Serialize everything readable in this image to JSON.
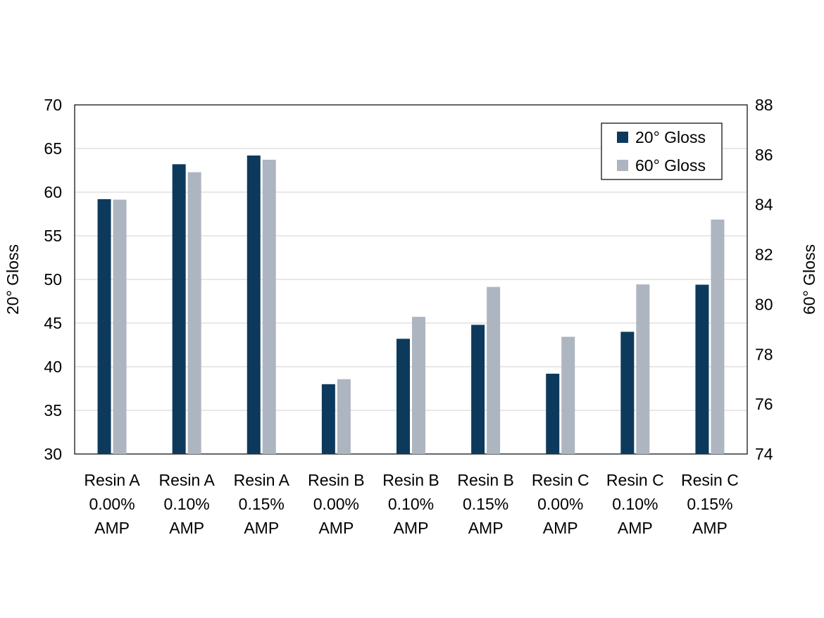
{
  "chart_data": {
    "type": "bar",
    "categories": [
      [
        "Resin A",
        "0.00%",
        "AMP"
      ],
      [
        "Resin A",
        "0.10%",
        "AMP"
      ],
      [
        "Resin A",
        "0.15%",
        "AMP"
      ],
      [
        "Resin B",
        "0.00%",
        "AMP"
      ],
      [
        "Resin B",
        "0.10%",
        "AMP"
      ],
      [
        "Resin B",
        "0.15%",
        "AMP"
      ],
      [
        "Resin C",
        "0.00%",
        "AMP"
      ],
      [
        "Resin C",
        "0.10%",
        "AMP"
      ],
      [
        "Resin C",
        "0.15%",
        "AMP"
      ]
    ],
    "series": [
      {
        "name": "20° Gloss",
        "axis": "left",
        "color": "#0d3a5c",
        "values": [
          59.2,
          63.2,
          64.2,
          38.0,
          43.2,
          44.8,
          39.2,
          44.0,
          49.4
        ]
      },
      {
        "name": "60° Gloss",
        "axis": "right",
        "color": "#adb5c0",
        "values": [
          84.2,
          85.3,
          85.8,
          77.0,
          79.5,
          80.7,
          78.7,
          80.8,
          83.4
        ]
      }
    ],
    "ylabel": "20° Gloss",
    "y2label": "60° Gloss",
    "ylim": [
      30,
      70
    ],
    "y2lim": [
      74,
      88
    ],
    "yticks": [
      30,
      35,
      40,
      45,
      50,
      55,
      60,
      65,
      70
    ],
    "y2ticks": [
      74,
      76,
      78,
      80,
      82,
      84,
      86,
      88
    ],
    "grid": true,
    "legend_position": "top-right"
  }
}
